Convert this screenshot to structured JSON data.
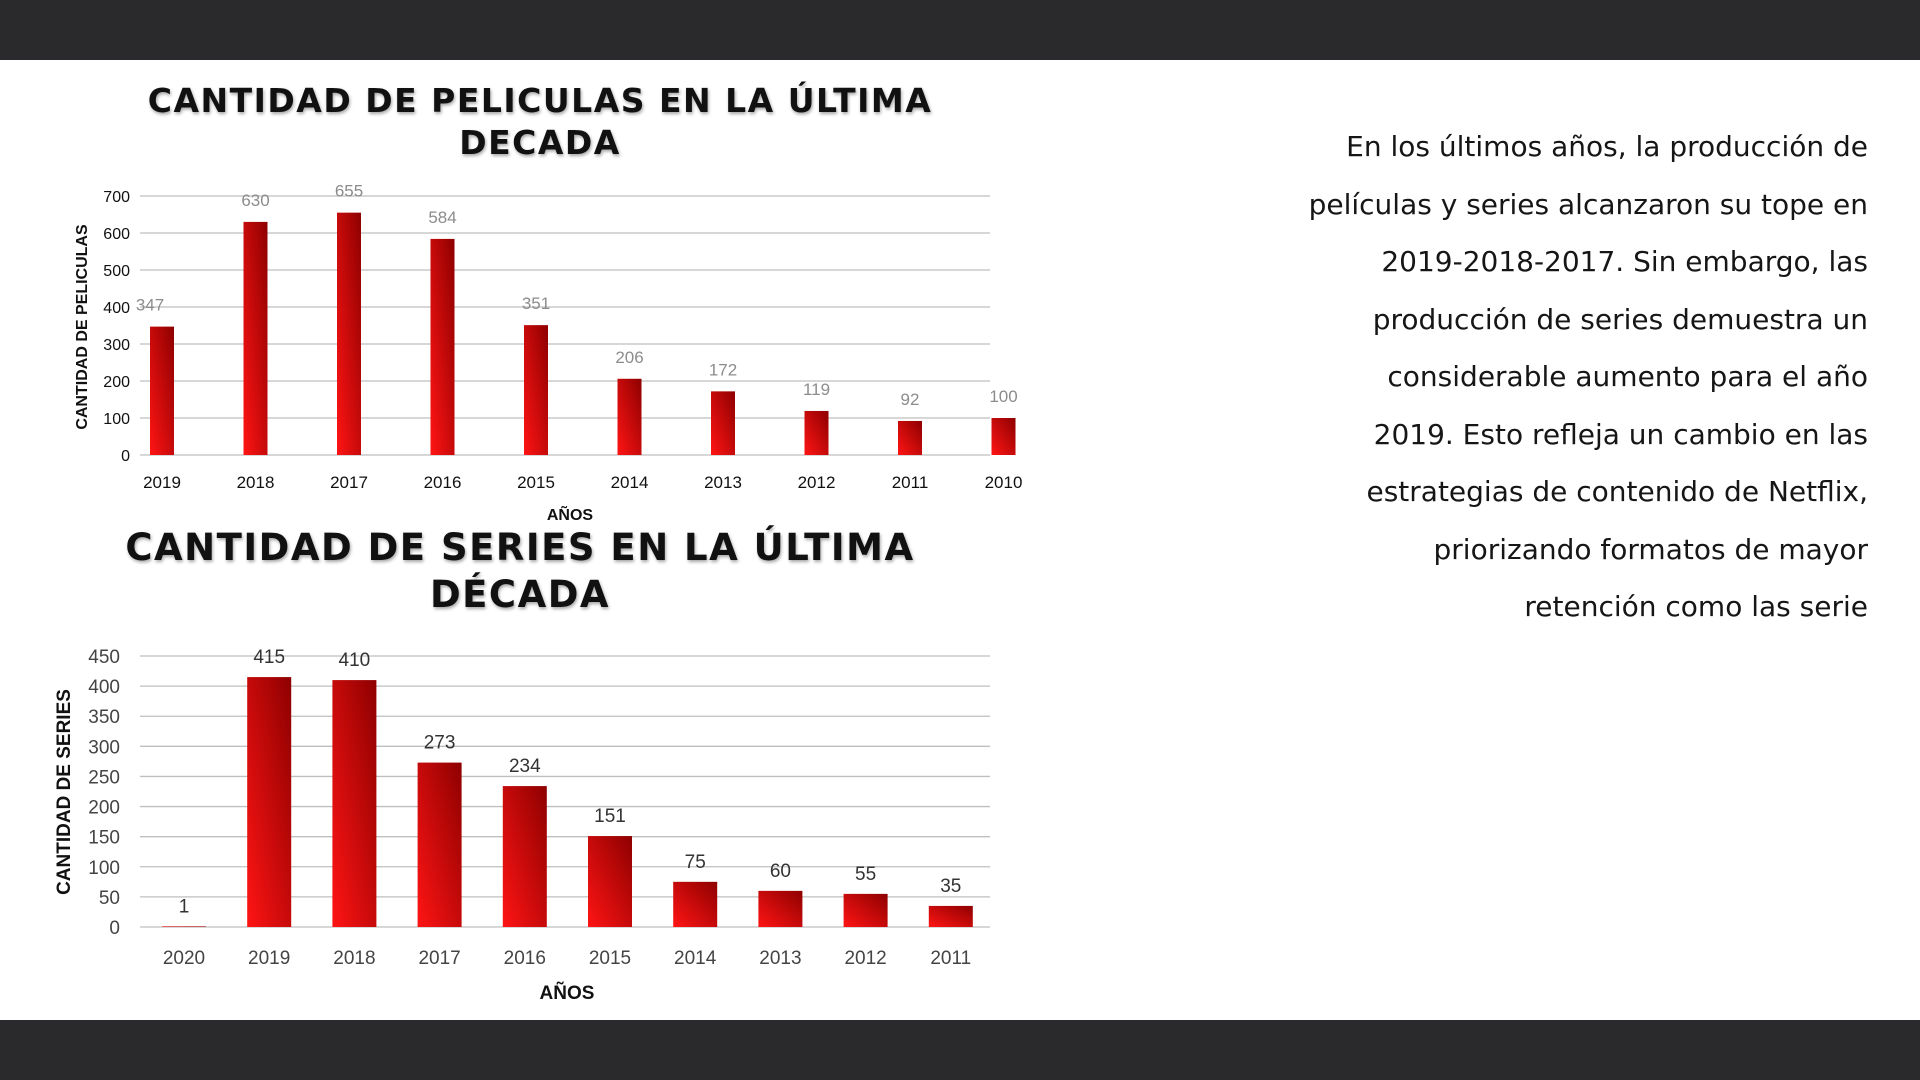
{
  "narrative": "En los últimos años, la producción de películas y series alcanzaron su tope en 2019-2018-2017. Sin embargo, las producción de series demuestra un considerable aumento para el año 2019. Esto refleja un cambio en las estrategias de contenido de Netflix, priorizando formatos de mayor retención como las serie",
  "colors": {
    "band": "#2a2a2c",
    "bar_light": "#ff1414",
    "bar_dark": "#8e0000",
    "grid": "#bfbfbf"
  },
  "chart_data": [
    {
      "type": "bar",
      "title": "CANTIDAD DE PELICULAS EN LA ÚLTIMA DECADA",
      "xlabel": "AÑOS",
      "ylabel": "CANTIDAD DE PELICULAS",
      "categories": [
        "2019",
        "2018",
        "2017",
        "2016",
        "2015",
        "2014",
        "2013",
        "2012",
        "2011",
        "2010"
      ],
      "values": [
        347,
        630,
        655,
        584,
        351,
        206,
        172,
        119,
        92,
        100
      ],
      "ylim": [
        0,
        700
      ],
      "yticks": [
        0,
        100,
        200,
        300,
        400,
        500,
        600,
        700
      ],
      "grid": true,
      "legend": "none"
    },
    {
      "type": "bar",
      "title": "CANTIDAD DE SERIES EN LA ÚLTIMA DÉCADA",
      "xlabel": "AÑOS",
      "ylabel": "CANTIDAD DE SERIES",
      "categories": [
        "2020",
        "2019",
        "2018",
        "2017",
        "2016",
        "2015",
        "2014",
        "2013",
        "2012",
        "2011"
      ],
      "values": [
        1,
        415,
        410,
        273,
        234,
        151,
        75,
        60,
        55,
        35
      ],
      "ylim": [
        0,
        450
      ],
      "yticks": [
        0,
        50,
        100,
        150,
        200,
        250,
        300,
        350,
        400,
        450
      ],
      "grid": true,
      "legend": "none"
    }
  ]
}
